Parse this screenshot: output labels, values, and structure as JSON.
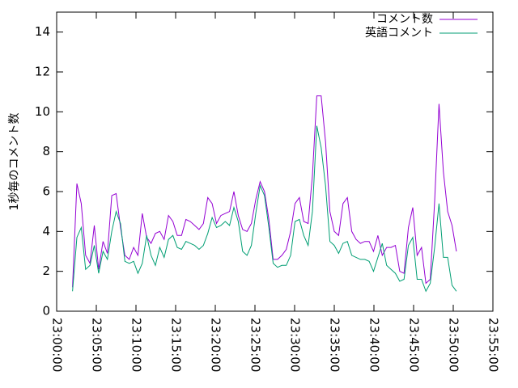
{
  "chart_data": {
    "type": "line",
    "y_label": "1秒毎のコメント数",
    "xlim": [
      "23:00:00",
      "23:55:00"
    ],
    "xticks": [
      "23:00:00",
      "23:05:00",
      "23:10:00",
      "23:15:00",
      "23:20:00",
      "23:25:00",
      "23:30:00",
      "23:35:00",
      "23:40:00",
      "23:45:00",
      "23:50:00",
      "23:55:00"
    ],
    "ylim": [
      0,
      15
    ],
    "yticks": [
      0,
      2,
      4,
      6,
      8,
      10,
      12,
      14
    ],
    "legend": "top-right",
    "x": [
      "23:02:00",
      "23:02:33",
      "23:03:06",
      "23:03:39",
      "23:04:12",
      "23:04:45",
      "23:05:18",
      "23:05:51",
      "23:06:24",
      "23:06:57",
      "23:07:30",
      "23:08:03",
      "23:08:36",
      "23:09:09",
      "23:09:42",
      "23:10:15",
      "23:10:48",
      "23:11:21",
      "23:11:54",
      "23:12:27",
      "23:13:00",
      "23:13:33",
      "23:14:06",
      "23:14:39",
      "23:15:12",
      "23:15:45",
      "23:16:18",
      "23:16:51",
      "23:17:24",
      "23:17:57",
      "23:18:30",
      "23:19:03",
      "23:19:36",
      "23:20:09",
      "23:20:42",
      "23:21:15",
      "23:21:48",
      "23:22:21",
      "23:22:54",
      "23:23:27",
      "23:24:00",
      "23:24:33",
      "23:25:06",
      "23:25:39",
      "23:26:12",
      "23:26:45",
      "23:27:18",
      "23:27:51",
      "23:28:24",
      "23:28:57",
      "23:29:30",
      "23:30:03",
      "23:30:36",
      "23:31:09",
      "23:31:42",
      "23:32:15",
      "23:32:48",
      "23:33:21",
      "23:33:54",
      "23:34:27",
      "23:35:00",
      "23:35:33",
      "23:36:06",
      "23:36:39",
      "23:37:12",
      "23:37:45",
      "23:38:18",
      "23:38:51",
      "23:39:24",
      "23:39:57",
      "23:40:30",
      "23:41:03",
      "23:41:36",
      "23:42:09",
      "23:42:42",
      "23:43:15",
      "23:43:48",
      "23:44:21",
      "23:44:54",
      "23:45:27",
      "23:46:00",
      "23:46:33",
      "23:47:06",
      "23:47:39",
      "23:48:12",
      "23:48:45",
      "23:49:18",
      "23:49:51",
      "23:50:24"
    ],
    "series": [
      {
        "name": "コメント数",
        "color": "#9400d3",
        "values": [
          1.2,
          6.4,
          5.4,
          2.8,
          2.4,
          4.3,
          2.1,
          3.5,
          2.9,
          5.8,
          5.9,
          4.2,
          2.8,
          2.6,
          3.2,
          2.8,
          4.9,
          3.7,
          3.4,
          3.9,
          4.0,
          3.6,
          4.8,
          4.5,
          3.8,
          3.8,
          4.6,
          4.5,
          4.3,
          4.1,
          4.4,
          5.7,
          5.4,
          4.4,
          4.8,
          4.9,
          5.0,
          6.0,
          4.8,
          4.1,
          4.0,
          4.4,
          5.6,
          6.5,
          6.0,
          4.6,
          2.6,
          2.6,
          2.8,
          3.1,
          4.0,
          5.4,
          5.7,
          4.5,
          4.4,
          6.8,
          10.8,
          10.8,
          8.5,
          5.0,
          4.0,
          3.8,
          5.4,
          5.7,
          4.0,
          3.6,
          3.4,
          3.5,
          3.5,
          3.0,
          3.8,
          2.8,
          3.2,
          3.2,
          3.3,
          2.0,
          1.9,
          4.2,
          5.2,
          2.8,
          3.2,
          1.4,
          1.6,
          5.5,
          10.4,
          7.0,
          5.0,
          4.3,
          3.0
        ]
      },
      {
        "name": "英語コメント",
        "color": "#009e73",
        "values": [
          1.0,
          3.7,
          4.2,
          2.1,
          2.3,
          3.3,
          1.9,
          3.0,
          2.6,
          4.0,
          5.0,
          4.4,
          2.5,
          2.4,
          2.5,
          1.9,
          2.4,
          3.8,
          2.8,
          2.3,
          3.2,
          2.7,
          3.6,
          3.8,
          3.2,
          3.1,
          3.5,
          3.4,
          3.3,
          3.1,
          3.3,
          3.9,
          4.7,
          4.2,
          4.3,
          4.5,
          4.3,
          5.2,
          4.5,
          3.0,
          2.8,
          3.3,
          4.9,
          6.3,
          5.8,
          4.2,
          2.4,
          2.2,
          2.3,
          2.3,
          2.8,
          4.5,
          4.6,
          3.8,
          3.3,
          5.0,
          9.3,
          8.2,
          6.3,
          3.5,
          3.3,
          2.9,
          3.4,
          3.5,
          2.8,
          2.7,
          2.6,
          2.6,
          2.5,
          2.0,
          2.7,
          3.4,
          2.3,
          2.1,
          1.9,
          1.5,
          1.6,
          3.3,
          3.7,
          1.6,
          1.6,
          1.0,
          1.4,
          3.2,
          5.4,
          2.7,
          2.7,
          1.3,
          1.0
        ]
      }
    ]
  }
}
